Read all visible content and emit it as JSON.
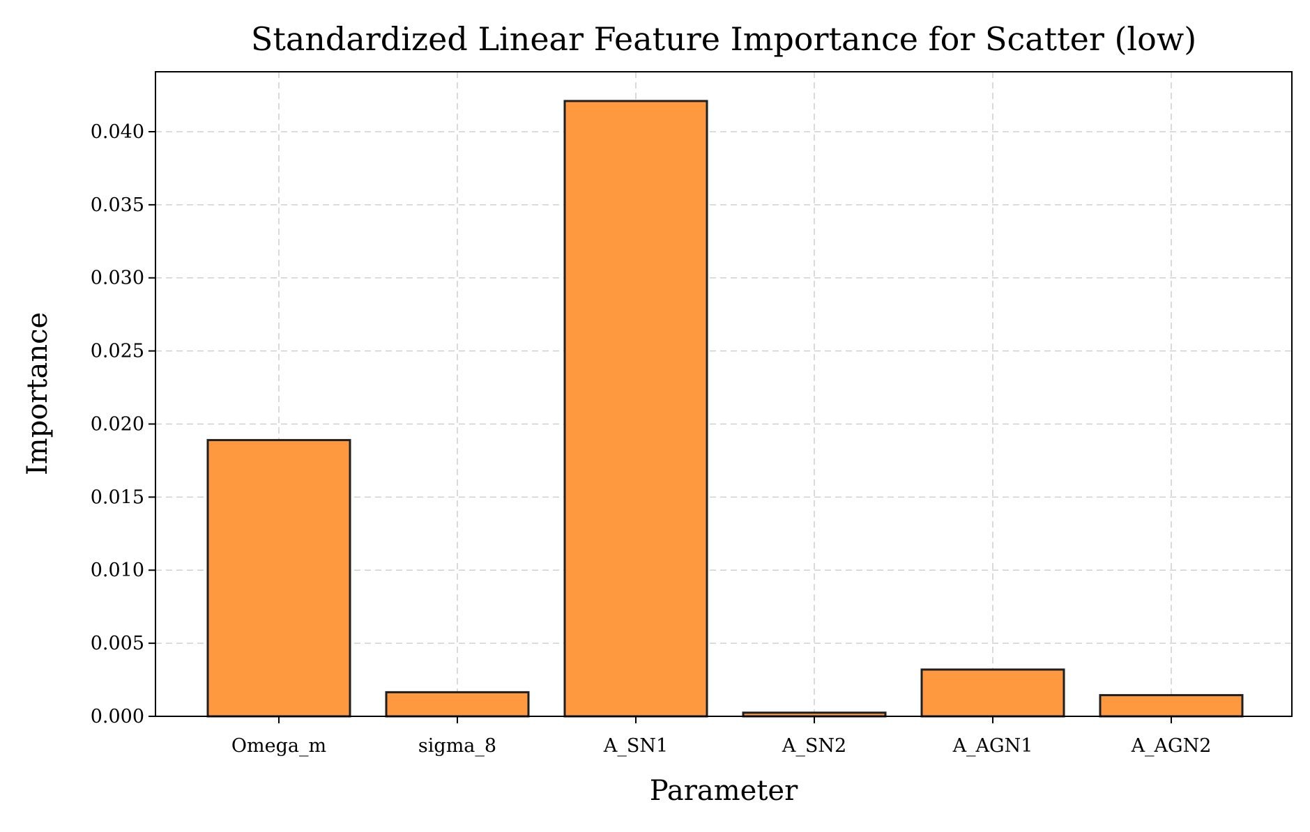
{
  "chart_data": {
    "type": "bar",
    "title": "Standardized Linear Feature Importance for Scatter (low)",
    "xlabel": "Parameter",
    "ylabel": "Importance",
    "categories": [
      "Omega_m",
      "sigma_8",
      "A_SN1",
      "A_SN2",
      "A_AGN1",
      "A_AGN2"
    ],
    "values": [
      0.0189,
      0.00165,
      0.0421,
      0.00025,
      0.0032,
      0.00145
    ],
    "ylim": [
      0,
      0.0441
    ],
    "yticks": [
      0.0,
      0.005,
      0.01,
      0.015,
      0.02,
      0.025,
      0.03,
      0.035,
      0.04
    ],
    "ytick_labels": [
      "0.000",
      "0.005",
      "0.010",
      "0.015",
      "0.020",
      "0.025",
      "0.030",
      "0.035",
      "0.040"
    ],
    "grid": true,
    "legend": "none",
    "colors": {
      "bar_fill": "#fe9940",
      "bar_edge": "#1f1f1f",
      "grid": "#d0d0d0"
    }
  }
}
